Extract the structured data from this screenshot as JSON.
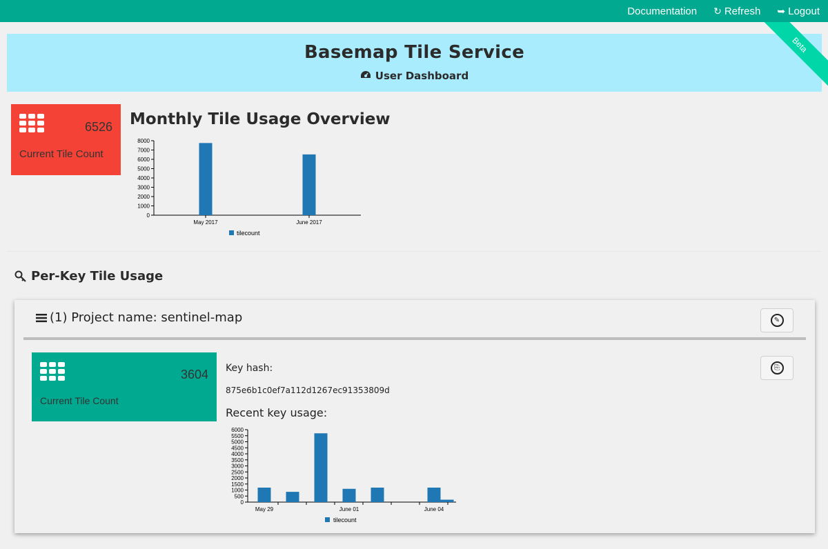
{
  "nav": {
    "documentation": "Documentation",
    "refresh": "Refresh",
    "logout": "Logout"
  },
  "hero": {
    "title": "Basemap Tile Service",
    "subtitle": "User Dashboard",
    "ribbon": "Beta"
  },
  "overview": {
    "count": "6526",
    "count_label": "Current Tile Count",
    "heading": "Monthly Tile Usage Overview"
  },
  "per_key": {
    "heading": "Per-Key Tile Usage",
    "project_title": "(1) Project name: sentinel-map",
    "count": "3604",
    "count_label": "Current Tile Count",
    "key_hash_label": "Key hash:",
    "key_hash": "875e6b1c0ef7a112d1267ec91353809d",
    "recent_label": "Recent key usage:"
  },
  "colors": {
    "topbar": "#00a98f",
    "hero": "#a9ecfd",
    "card_red": "#f44336",
    "card_green": "#00a98f",
    "bar": "#1f77b4"
  },
  "chart_data": [
    {
      "type": "bar",
      "categories": [
        "May 2017",
        "June 2017"
      ],
      "series": [
        {
          "name": "tilecount",
          "values": [
            7750,
            6526
          ]
        }
      ],
      "ylim": [
        0,
        8000
      ],
      "yticks": [
        0,
        1000,
        2000,
        3000,
        4000,
        5000,
        6000,
        7000,
        8000
      ],
      "legend": "bottom"
    },
    {
      "type": "bar",
      "x_tick_labels": [
        "May 29",
        "June 01",
        "June 04"
      ],
      "series": [
        {
          "name": "tilecount",
          "values": [
            1200,
            850,
            5700,
            1100,
            1200,
            0,
            1200,
            200
          ]
        }
      ],
      "ylim": [
        0,
        6000
      ],
      "yticks": [
        0,
        500,
        1000,
        1500,
        2000,
        2500,
        3000,
        3500,
        4000,
        4500,
        5000,
        5500,
        6000
      ],
      "legend": "bottom"
    }
  ]
}
